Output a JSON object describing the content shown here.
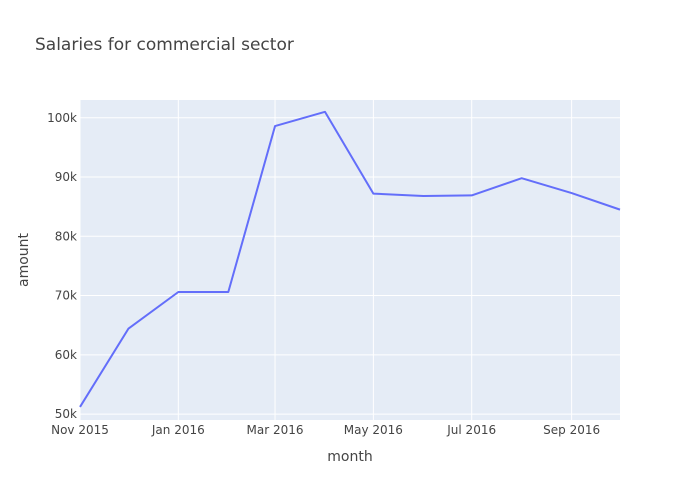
{
  "chart_data": {
    "type": "line",
    "title": "Salaries for commercial sector",
    "xlabel": "month",
    "ylabel": "amount",
    "x": [
      "2015-11-01",
      "2015-12-01",
      "2016-01-01",
      "2016-02-01",
      "2016-03-01",
      "2016-04-01",
      "2016-05-01",
      "2016-06-01",
      "2016-07-01",
      "2016-08-01",
      "2016-09-01",
      "2016-10-01"
    ],
    "values": [
      51200,
      64400,
      70600,
      70600,
      98600,
      101000,
      87200,
      86800,
      86900,
      89800,
      87300,
      84500
    ],
    "xlim": [
      "2015-11-01",
      "2016-10-01"
    ],
    "ylim": [
      49000,
      103000
    ],
    "x_ticks": [
      {
        "date": "2015-11-01",
        "label": "Nov 2015"
      },
      {
        "date": "2016-01-01",
        "label": "Jan 2016"
      },
      {
        "date": "2016-03-01",
        "label": "Mar 2016"
      },
      {
        "date": "2016-05-01",
        "label": "May 2016"
      },
      {
        "date": "2016-07-01",
        "label": "Jul 2016"
      },
      {
        "date": "2016-09-01",
        "label": "Sep 2016"
      }
    ],
    "y_ticks": [
      {
        "value": 50000,
        "label": "50k"
      },
      {
        "value": 60000,
        "label": "60k"
      },
      {
        "value": 70000,
        "label": "70k"
      },
      {
        "value": 80000,
        "label": "80k"
      },
      {
        "value": 90000,
        "label": "90k"
      },
      {
        "value": 100000,
        "label": "100k"
      }
    ],
    "grid": true,
    "colors": {
      "line": "#636efa",
      "plot_bg": "#e5ecf6",
      "grid": "#ffffff"
    }
  }
}
